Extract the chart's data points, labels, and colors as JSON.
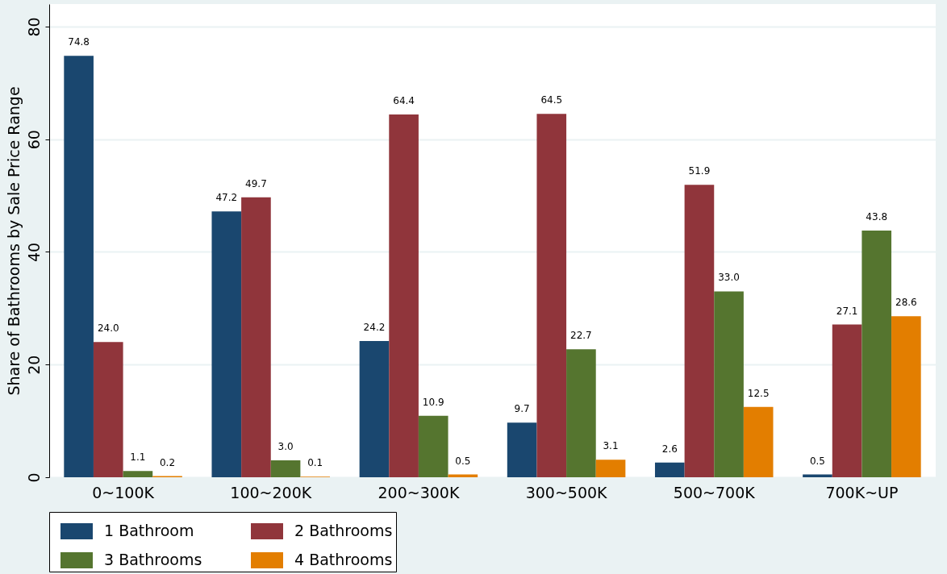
{
  "chart_data": {
    "type": "bar",
    "ylabel": "Share of Bathrooms by Sale Price Range",
    "categories": [
      "0~100K",
      "100~200K",
      "200~300K",
      "300~500K",
      "500~700K",
      "700K~UP"
    ],
    "series": [
      {
        "name": "1 Bathroom",
        "color": "#1a476f",
        "values": [
          74.8,
          47.2,
          24.2,
          9.7,
          2.6,
          0.5
        ],
        "value_labels": [
          "74.8",
          "47.2",
          "24.2",
          "9.7",
          "2.6",
          "0.5"
        ]
      },
      {
        "name": "2 Bathrooms",
        "color": "#90353b",
        "values": [
          24.0,
          49.7,
          64.4,
          64.5,
          51.9,
          27.1
        ],
        "value_labels": [
          "24.0",
          "49.7",
          "64.4",
          "64.5",
          "51.9",
          "27.1"
        ]
      },
      {
        "name": "3 Bathrooms",
        "color": "#55752f",
        "values": [
          1.1,
          3.0,
          10.9,
          22.7,
          33.0,
          43.8
        ],
        "value_labels": [
          "1.1",
          "3.0",
          "10.9",
          "22.7",
          "33.0",
          "43.8"
        ]
      },
      {
        "name": "4 Bathrooms",
        "color": "#e37e00",
        "values": [
          0.2,
          0.1,
          0.5,
          3.1,
          12.5,
          28.6
        ],
        "value_labels": [
          "0.2",
          "0.1",
          "0.5",
          "3.1",
          "12.5",
          "28.6"
        ]
      }
    ],
    "ylim": [
      0,
      84
    ],
    "yticks": [
      0,
      20,
      40,
      60,
      80
    ],
    "grid": "y",
    "legend": "bottom"
  }
}
